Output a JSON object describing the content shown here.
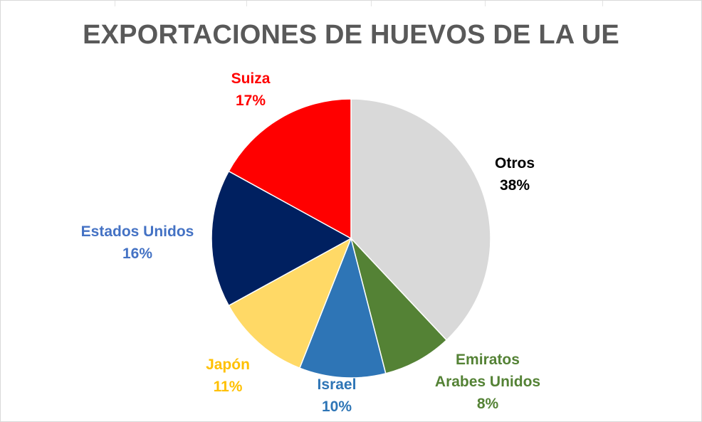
{
  "chart_data": {
    "type": "pie",
    "title": "EXPORTACIONES DE HUEVOS DE LA UE",
    "slices": [
      {
        "name": "Otros",
        "label_lines": [
          "Otros"
        ],
        "value": 38,
        "pct_label": "38%",
        "color": "#D9D9D9",
        "label_color": "#000000"
      },
      {
        "name": "Emiratos Arabes Unidos",
        "label_lines": [
          "Emiratos",
          "Arabes Unidos"
        ],
        "value": 8,
        "pct_label": "8%",
        "color": "#548235",
        "label_color": "#548235"
      },
      {
        "name": "Israel",
        "label_lines": [
          "Israel"
        ],
        "value": 10,
        "pct_label": "10%",
        "color": "#2E75B6",
        "label_color": "#2E75B6"
      },
      {
        "name": "Japón",
        "label_lines": [
          "Japón"
        ],
        "value": 11,
        "pct_label": "11%",
        "color": "#FFD966",
        "label_color": "#FFC000"
      },
      {
        "name": "Estados Unidos",
        "label_lines": [
          "Estados Unidos"
        ],
        "value": 16,
        "pct_label": "16%",
        "color": "#002060",
        "label_color": "#4472C4"
      },
      {
        "name": "Suiza",
        "label_lines": [
          "Suiza"
        ],
        "value": 17,
        "pct_label": "17%",
        "color": "#FF0000",
        "label_color": "#FF0000"
      }
    ],
    "start_angle": "12 o'clock",
    "direction": "clockwise",
    "legend": "none"
  }
}
